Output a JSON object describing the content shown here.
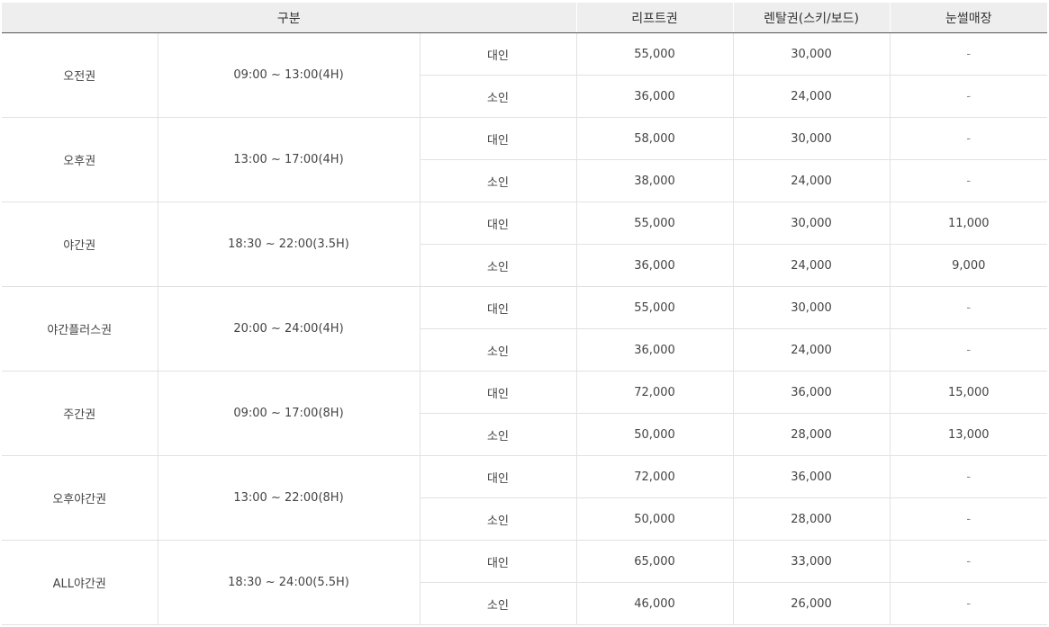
{
  "header": {
    "category": "구분",
    "lift": "리프트권",
    "rental": "렌탈권(스키/보드)",
    "snow": "눈썰매장"
  },
  "tickets": [
    {
      "name": "오전권",
      "time": "09:00 ~ 13:00(4H)",
      "rows": [
        {
          "age": "대인",
          "lift": "55,000",
          "rental": "30,000",
          "snow": "-"
        },
        {
          "age": "소인",
          "lift": "36,000",
          "rental": "24,000",
          "snow": "-"
        }
      ]
    },
    {
      "name": "오후권",
      "time": "13:00 ~ 17:00(4H)",
      "rows": [
        {
          "age": "대인",
          "lift": "58,000",
          "rental": "30,000",
          "snow": "-"
        },
        {
          "age": "소인",
          "lift": "38,000",
          "rental": "24,000",
          "snow": "-"
        }
      ]
    },
    {
      "name": "야간권",
      "time": "18:30 ~ 22:00(3.5H)",
      "rows": [
        {
          "age": "대인",
          "lift": "55,000",
          "rental": "30,000",
          "snow": "11,000"
        },
        {
          "age": "소인",
          "lift": "36,000",
          "rental": "24,000",
          "snow": "9,000"
        }
      ]
    },
    {
      "name": "야간플러스권",
      "time": "20:00 ~ 24:00(4H)",
      "rows": [
        {
          "age": "대인",
          "lift": "55,000",
          "rental": "30,000",
          "snow": "-"
        },
        {
          "age": "소인",
          "lift": "36,000",
          "rental": "24,000",
          "snow": "-"
        }
      ]
    },
    {
      "name": "주간권",
      "time": "09:00 ~ 17:00(8H)",
      "rows": [
        {
          "age": "대인",
          "lift": "72,000",
          "rental": "36,000",
          "snow": "15,000"
        },
        {
          "age": "소인",
          "lift": "50,000",
          "rental": "28,000",
          "snow": "13,000"
        }
      ]
    },
    {
      "name": "오후야간권",
      "time": "13:00 ~ 22:00(8H)",
      "rows": [
        {
          "age": "대인",
          "lift": "72,000",
          "rental": "36,000",
          "snow": "-"
        },
        {
          "age": "소인",
          "lift": "50,000",
          "rental": "28,000",
          "snow": "-"
        }
      ]
    },
    {
      "name": "ALL야간권",
      "time": "18:30 ~ 24:00(5.5H)",
      "rows": [
        {
          "age": "대인",
          "lift": "65,000",
          "rental": "33,000",
          "snow": "-"
        },
        {
          "age": "소인",
          "lift": "46,000",
          "rental": "26,000",
          "snow": "-"
        }
      ]
    }
  ]
}
